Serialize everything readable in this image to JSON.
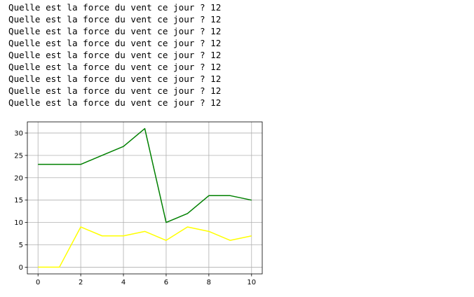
{
  "console": {
    "lines": [
      "Quelle est la force du vent ce jour ? 12",
      "Quelle est la force du vent ce jour ? 12",
      "Quelle est la force du vent ce jour ? 12",
      "Quelle est la force du vent ce jour ? 12",
      "Quelle est la force du vent ce jour ? 12",
      "Quelle est la force du vent ce jour ? 12",
      "Quelle est la force du vent ce jour ? 12",
      "Quelle est la force du vent ce jour ? 12",
      "Quelle est la force du vent ce jour ? 12"
    ]
  },
  "chart_data": {
    "type": "line",
    "title": "",
    "xlabel": "",
    "ylabel": "",
    "xlim": [
      -0.5,
      10.5
    ],
    "ylim": [
      -1.5,
      32.5
    ],
    "xticks": [
      0,
      2,
      4,
      6,
      8,
      10
    ],
    "yticks": [
      0,
      5,
      10,
      15,
      20,
      25,
      30
    ],
    "grid": true,
    "x": [
      0,
      1,
      2,
      3,
      4,
      5,
      6,
      7,
      8,
      9,
      10
    ],
    "series": [
      {
        "color": "#008000",
        "values": [
          23,
          23,
          23,
          25,
          27,
          31,
          10,
          12,
          16,
          16,
          15
        ]
      },
      {
        "color": "#ffff00",
        "values": [
          0,
          0,
          9,
          7,
          7,
          8,
          6,
          9,
          8,
          6,
          7
        ]
      }
    ]
  }
}
